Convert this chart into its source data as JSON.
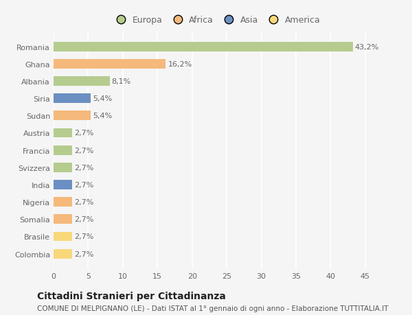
{
  "countries": [
    "Romania",
    "Ghana",
    "Albania",
    "Siria",
    "Sudan",
    "Austria",
    "Francia",
    "Svizzera",
    "India",
    "Nigeria",
    "Somalia",
    "Brasile",
    "Colombia"
  ],
  "values": [
    43.2,
    16.2,
    8.1,
    5.4,
    5.4,
    2.7,
    2.7,
    2.7,
    2.7,
    2.7,
    2.7,
    2.7,
    2.7
  ],
  "labels": [
    "43,2%",
    "16,2%",
    "8,1%",
    "5,4%",
    "5,4%",
    "2,7%",
    "2,7%",
    "2,7%",
    "2,7%",
    "2,7%",
    "2,7%",
    "2,7%",
    "2,7%"
  ],
  "colors": [
    "#b5cc8e",
    "#f4b97b",
    "#b5cc8e",
    "#6b8fc2",
    "#f4b97b",
    "#b5cc8e",
    "#b5cc8e",
    "#b5cc8e",
    "#6b8fc2",
    "#f4b97b",
    "#f4b97b",
    "#f9d87a",
    "#f9d87a"
  ],
  "legend_labels": [
    "Europa",
    "Africa",
    "Asia",
    "America"
  ],
  "legend_colors": [
    "#b5cc8e",
    "#f4b97b",
    "#6b8fc2",
    "#f9d87a"
  ],
  "title": "Cittadini Stranieri per Cittadinanza",
  "subtitle": "COMUNE DI MELPIGNANO (LE) - Dati ISTAT al 1° gennaio di ogni anno - Elaborazione TUTTITALIA.IT",
  "xlim": [
    0,
    47
  ],
  "xticks": [
    0,
    5,
    10,
    15,
    20,
    25,
    30,
    35,
    40,
    45
  ],
  "background_color": "#f5f5f5",
  "grid_color": "#ffffff",
  "bar_height": 0.55,
  "title_fontsize": 10,
  "subtitle_fontsize": 7.5,
  "label_fontsize": 8,
  "tick_fontsize": 8,
  "legend_fontsize": 9
}
